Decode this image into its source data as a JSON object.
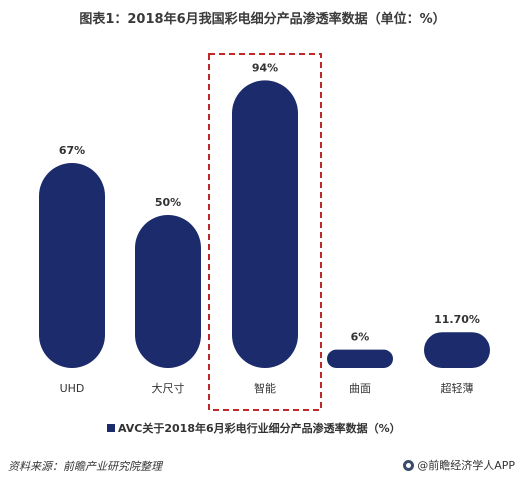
{
  "title": "图表1：2018年6月我国彩电细分产品渗透率数据（单位：%）",
  "source_text": "资料来源：前瞻产业研究院整理",
  "brand_text": "@前瞻经济学人APP",
  "colors": {
    "bar": "#1b2b6b",
    "highlight_box": "#c0282a",
    "text": "#333333"
  },
  "chart_data": {
    "type": "bar",
    "categories": [
      "UHD",
      "大尺寸",
      "智能",
      "曲面",
      "超轻薄"
    ],
    "series": [
      {
        "name": "AVC关于2018年6月彩电行业细分产品渗透率数据（%）",
        "values": [
          67,
          50,
          94,
          6,
          11.7
        ]
      }
    ],
    "value_labels": [
      "67%",
      "50%",
      "94%",
      "6%",
      "11.70%"
    ],
    "highlighted_category": "智能",
    "ylim": [
      0,
      100
    ],
    "grid": false,
    "legend_position": "bottom"
  }
}
